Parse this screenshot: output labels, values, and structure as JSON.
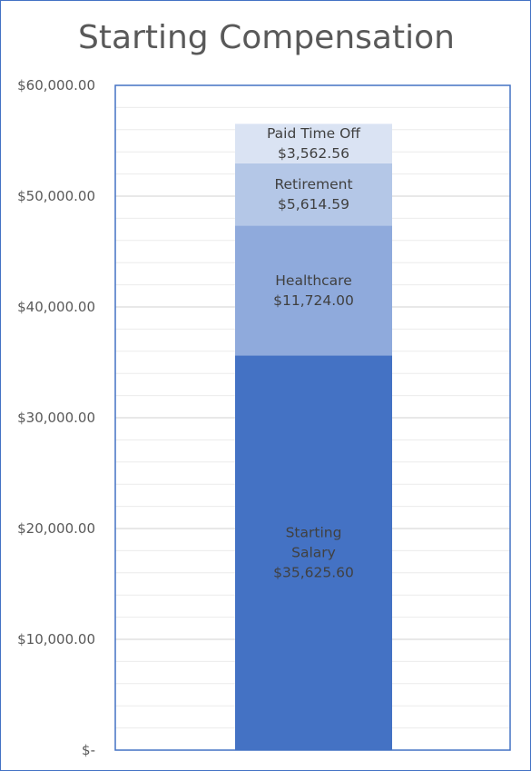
{
  "chart_data": {
    "type": "bar",
    "stacked": true,
    "title": "Starting Compensation",
    "ylim": [
      0,
      60000
    ],
    "y_tick_labels": [
      "$-",
      "$10,000.00",
      "$20,000.00",
      "$30,000.00",
      "$40,000.00",
      "$50,000.00",
      "$60,000.00"
    ],
    "grid": true,
    "series": [
      {
        "label_lines": [
          "Starting",
          "Salary",
          "$35,625.60"
        ],
        "value": 35625.6,
        "color": "#4472c4"
      },
      {
        "label_lines": [
          "Healthcare",
          "$11,724.00"
        ],
        "value": 11724.0,
        "color": "#8faadc"
      },
      {
        "label_lines": [
          "Retirement",
          "$5,614.59"
        ],
        "value": 5614.59,
        "color": "#b4c7e7"
      },
      {
        "label_lines": [
          "Paid Time Off",
          "$3,562.56"
        ],
        "value": 3562.56,
        "color": "#dae3f3"
      }
    ],
    "plot_border_color": "#4472c4"
  }
}
